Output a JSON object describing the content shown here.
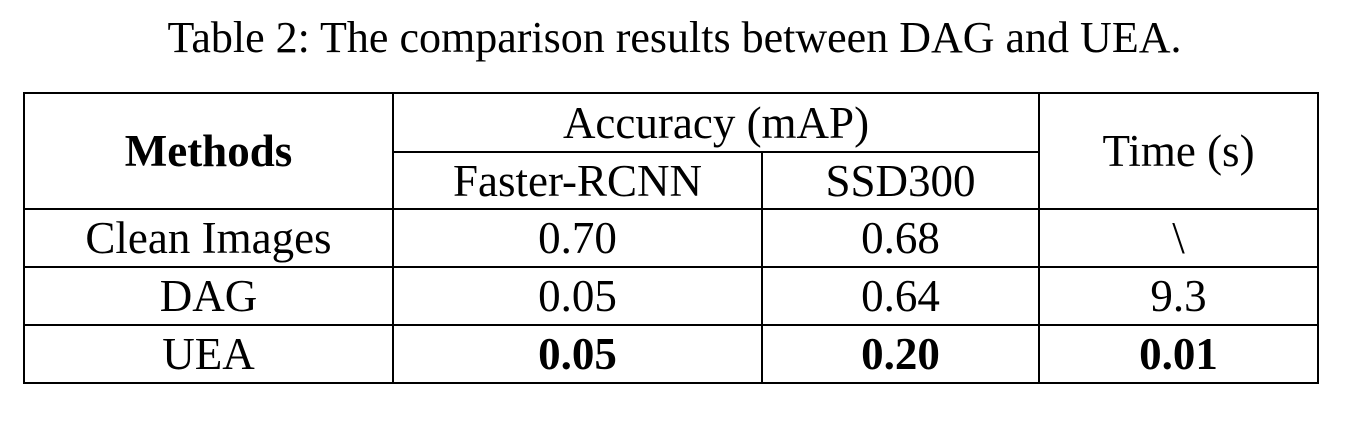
{
  "caption": "Table 2: The comparison results between DAG and UEA.",
  "table": {
    "header": {
      "methods": "Methods",
      "accuracy_group": "Accuracy (mAP)",
      "time": "Time (s)",
      "sub_columns": [
        "Faster-RCNN",
        "SSD300"
      ]
    },
    "rows": [
      {
        "method": "Clean Images",
        "faster_rcnn": "0.70",
        "ssd300": "0.68",
        "time": "\\",
        "bold": false
      },
      {
        "method": "DAG",
        "faster_rcnn": "0.05",
        "ssd300": "0.64",
        "time": "9.3",
        "bold": false
      },
      {
        "method": "UEA",
        "faster_rcnn": "0.05",
        "ssd300": "0.20",
        "time": "0.01",
        "bold": true
      }
    ]
  }
}
